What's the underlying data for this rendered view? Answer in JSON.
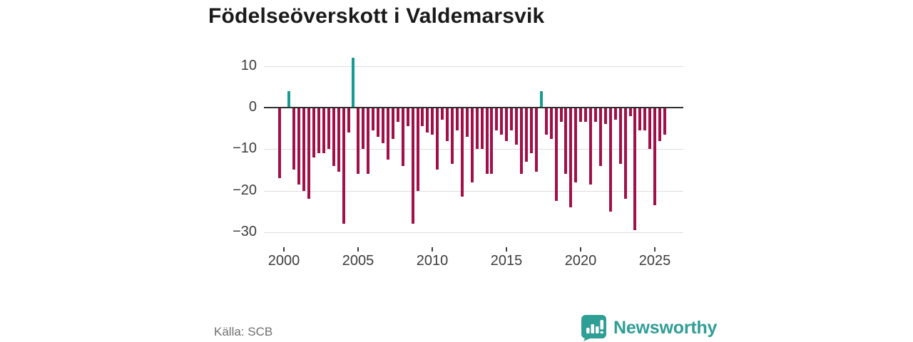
{
  "title": "Födelseöverskott i Valdemarsvik",
  "source_label": "Källa: SCB",
  "brand": {
    "name": "Newsworthy",
    "color": "#2f9e95"
  },
  "colors": {
    "bar_negative": "#a11048",
    "bar_positive": "#169c92",
    "gridline": "#dcdcdc",
    "axis_line": "#2e2e2e",
    "tick_text": "#3c3c3c",
    "title_text": "#1a1a1a",
    "source_text": "#6f6f6f"
  },
  "chart_data": {
    "type": "bar",
    "title": "Födelseöverskott i Valdemarsvik",
    "xlabel": "",
    "ylabel": "",
    "grid": true,
    "legend": "none",
    "y_ticks": [
      10,
      0,
      -10,
      -20,
      -30
    ],
    "ylim": [
      -32.5,
      12.5
    ],
    "x_tick_years": [
      2000,
      2005,
      2010,
      2015,
      2020,
      2025
    ],
    "periods_per_year": 3,
    "series": [
      {
        "name": "Födelseöverskott",
        "points": [
          [
            "1999-3",
            -17
          ],
          [
            "2000-1",
            0
          ],
          [
            "2000-2",
            4
          ],
          [
            "2000-3",
            -15
          ],
          [
            "2001-1",
            -18.5
          ],
          [
            "2001-2",
            -20
          ],
          [
            "2001-3",
            -22
          ],
          [
            "2002-1",
            -12
          ],
          [
            "2002-2",
            -11
          ],
          [
            "2002-3",
            -11
          ],
          [
            "2003-1",
            -10
          ],
          [
            "2003-2",
            -14
          ],
          [
            "2003-3",
            -15.5
          ],
          [
            "2004-1",
            -28
          ],
          [
            "2004-2",
            -6
          ],
          [
            "2004-3",
            12
          ],
          [
            "2005-1",
            -16
          ],
          [
            "2005-2",
            -10
          ],
          [
            "2005-3",
            -16
          ],
          [
            "2006-1",
            -5.5
          ],
          [
            "2006-2",
            -7
          ],
          [
            "2006-3",
            -8.5
          ],
          [
            "2007-1",
            -12.5
          ],
          [
            "2007-2",
            -7.5
          ],
          [
            "2007-3",
            -3.5
          ],
          [
            "2008-1",
            -14
          ],
          [
            "2008-2",
            -4.5
          ],
          [
            "2008-3",
            -28
          ],
          [
            "2009-1",
            -20
          ],
          [
            "2009-2",
            -4.5
          ],
          [
            "2009-3",
            -6
          ],
          [
            "2010-1",
            -6.5
          ],
          [
            "2010-2",
            -15
          ],
          [
            "2010-3",
            -3
          ],
          [
            "2011-1",
            -8
          ],
          [
            "2011-2",
            -13.5
          ],
          [
            "2011-3",
            -5.5
          ],
          [
            "2012-1",
            -21.5
          ],
          [
            "2012-2",
            -7
          ],
          [
            "2012-3",
            -18
          ],
          [
            "2013-1",
            -10
          ],
          [
            "2013-2",
            -10
          ],
          [
            "2013-3",
            -16
          ],
          [
            "2014-1",
            -16
          ],
          [
            "2014-2",
            -5.5
          ],
          [
            "2014-3",
            -6.5
          ],
          [
            "2015-1",
            -8
          ],
          [
            "2015-2",
            -5.5
          ],
          [
            "2015-3",
            -9
          ],
          [
            "2016-1",
            -16
          ],
          [
            "2016-2",
            -13
          ],
          [
            "2016-3",
            -11
          ],
          [
            "2017-1",
            -15.5
          ],
          [
            "2017-2",
            4
          ],
          [
            "2017-3",
            -6.5
          ],
          [
            "2018-1",
            -7.5
          ],
          [
            "2018-2",
            -22.5
          ],
          [
            "2018-3",
            -3.5
          ],
          [
            "2019-1",
            -16
          ],
          [
            "2019-2",
            -24
          ],
          [
            "2019-3",
            -18
          ],
          [
            "2020-1",
            -3.5
          ],
          [
            "2020-2",
            -3.5
          ],
          [
            "2020-3",
            -18.5
          ],
          [
            "2021-1",
            -3.5
          ],
          [
            "2021-2",
            -14
          ],
          [
            "2021-3",
            -4
          ],
          [
            "2022-1",
            -25
          ],
          [
            "2022-2",
            -3
          ],
          [
            "2022-3",
            -13.5
          ],
          [
            "2023-1",
            -22
          ],
          [
            "2023-2",
            -2
          ],
          [
            "2023-3",
            -29.5
          ],
          [
            "2024-1",
            -5.5
          ],
          [
            "2024-2",
            -5.5
          ],
          [
            "2024-3",
            -10
          ],
          [
            "2025-1",
            -23.5
          ],
          [
            "2025-2",
            -8
          ],
          [
            "2025-3",
            -6.5
          ]
        ]
      }
    ]
  }
}
